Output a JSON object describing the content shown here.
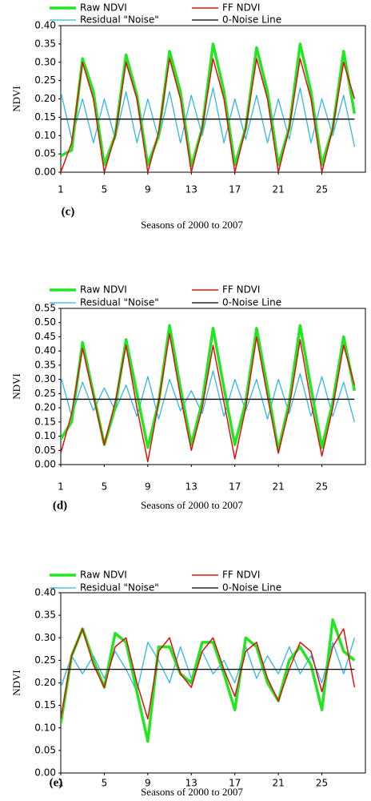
{
  "chart_data": [
    {
      "type": "line",
      "label": "(c)",
      "xlabel": "Seasons of 2000 to 2007",
      "ylabel": "NDVI",
      "x": [
        1,
        2,
        3,
        4,
        5,
        6,
        7,
        8,
        9,
        10,
        11,
        12,
        13,
        14,
        15,
        16,
        17,
        18,
        19,
        20,
        21,
        22,
        23,
        24,
        25,
        26,
        27,
        28
      ],
      "xlim": [
        1,
        29
      ],
      "xticks": [
        1,
        5,
        9,
        13,
        17,
        21,
        25
      ],
      "ylim": [
        0,
        0.4
      ],
      "yticks": [
        {
          "value": 0,
          "label": "0.00"
        },
        {
          "value": 0.05,
          "label": "0.05"
        },
        {
          "value": 0.1,
          "label": "0.10"
        },
        {
          "value": 0.15,
          "label": "0.15"
        },
        {
          "value": 0.2,
          "label": "0.20"
        },
        {
          "value": 0.25,
          "label": "0.25"
        },
        {
          "value": 0.3,
          "label": "0.30"
        },
        {
          "value": 0.35,
          "label": "0.35"
        },
        {
          "value": 0.4,
          "label": "0.40"
        }
      ],
      "series": [
        {
          "name": "Raw NDVI",
          "color": "#22e622",
          "values": [
            0.045,
            0.06,
            0.31,
            0.22,
            0.02,
            0.1,
            0.32,
            0.21,
            0.02,
            0.1,
            0.33,
            0.22,
            0.015,
            0.12,
            0.35,
            0.22,
            0.02,
            0.12,
            0.34,
            0.22,
            0.02,
            0.12,
            0.35,
            0.22,
            0.02,
            0.12,
            0.33,
            0.16
          ]
        },
        {
          "name": "FF NDVI",
          "color": "#e01010",
          "values": [
            0.0,
            0.08,
            0.3,
            0.2,
            0.0,
            0.1,
            0.3,
            0.2,
            0.0,
            0.11,
            0.31,
            0.2,
            0.0,
            0.12,
            0.31,
            0.2,
            0.0,
            0.12,
            0.31,
            0.2,
            0.0,
            0.12,
            0.31,
            0.2,
            0.0,
            0.12,
            0.3,
            0.2
          ]
        },
        {
          "name": "Residual \"Noise\"",
          "color": "#30b8e8",
          "values": [
            0.22,
            0.09,
            0.2,
            0.08,
            0.2,
            0.09,
            0.22,
            0.08,
            0.2,
            0.09,
            0.22,
            0.08,
            0.21,
            0.1,
            0.23,
            0.08,
            0.2,
            0.09,
            0.21,
            0.08,
            0.2,
            0.09,
            0.23,
            0.08,
            0.2,
            0.1,
            0.21,
            0.07
          ]
        },
        {
          "name": "0-Noise Line",
          "color": "#000000",
          "values": [
            0.145,
            0.145,
            0.145,
            0.145,
            0.145,
            0.145,
            0.145,
            0.145,
            0.145,
            0.145,
            0.145,
            0.145,
            0.145,
            0.145,
            0.145,
            0.145,
            0.145,
            0.145,
            0.145,
            0.145,
            0.145,
            0.145,
            0.145,
            0.145,
            0.145,
            0.145,
            0.145,
            0.145
          ]
        }
      ]
    },
    {
      "type": "line",
      "label": "(d)",
      "xlabel": "Seasons of 2000 to 2007",
      "ylabel": "NDVI",
      "x": [
        1,
        2,
        3,
        4,
        5,
        6,
        7,
        8,
        9,
        10,
        11,
        12,
        13,
        14,
        15,
        16,
        17,
        18,
        19,
        20,
        21,
        22,
        23,
        24,
        25,
        26,
        27,
        28
      ],
      "xlim": [
        1,
        29
      ],
      "xticks": [
        1,
        5,
        9,
        13,
        17,
        21,
        25
      ],
      "ylim": [
        0,
        0.55
      ],
      "yticks": [
        {
          "value": 0,
          "label": "0.00"
        },
        {
          "value": 0.05,
          "label": "0.05"
        },
        {
          "value": 0.1,
          "label": "0.10"
        },
        {
          "value": 0.15,
          "label": "0.15"
        },
        {
          "value": 0.2,
          "label": "0.20"
        },
        {
          "value": 0.25,
          "label": "0.25"
        },
        {
          "value": 0.3,
          "label": "0.30"
        },
        {
          "value": 0.35,
          "label": "0.35"
        },
        {
          "value": 0.4,
          "label": "0.40"
        },
        {
          "value": 0.45,
          "label": "0.45"
        },
        {
          "value": 0.5,
          "label": "0.50"
        },
        {
          "value": 0.55,
          "label": "0.55"
        }
      ],
      "series": [
        {
          "name": "Raw NDVI",
          "color": "#22e622",
          "values": [
            0.09,
            0.15,
            0.43,
            0.25,
            0.07,
            0.2,
            0.44,
            0.25,
            0.06,
            0.22,
            0.49,
            0.27,
            0.07,
            0.22,
            0.48,
            0.27,
            0.07,
            0.22,
            0.48,
            0.27,
            0.05,
            0.22,
            0.49,
            0.27,
            0.06,
            0.22,
            0.45,
            0.26
          ]
        },
        {
          "name": "FF NDVI",
          "color": "#e01010",
          "values": [
            0.04,
            0.18,
            0.41,
            0.24,
            0.07,
            0.22,
            0.42,
            0.2,
            0.01,
            0.22,
            0.46,
            0.24,
            0.05,
            0.2,
            0.42,
            0.22,
            0.02,
            0.2,
            0.45,
            0.24,
            0.04,
            0.2,
            0.44,
            0.22,
            0.03,
            0.2,
            0.42,
            0.28
          ]
        },
        {
          "name": "Residual \"Noise\"",
          "color": "#30b8e8",
          "values": [
            0.31,
            0.17,
            0.29,
            0.19,
            0.27,
            0.19,
            0.28,
            0.17,
            0.31,
            0.16,
            0.3,
            0.19,
            0.26,
            0.18,
            0.33,
            0.17,
            0.3,
            0.19,
            0.3,
            0.16,
            0.3,
            0.18,
            0.32,
            0.17,
            0.31,
            0.17,
            0.29,
            0.15
          ]
        },
        {
          "name": "0-Noise Line",
          "color": "#000000",
          "values": [
            0.23,
            0.23,
            0.23,
            0.23,
            0.23,
            0.23,
            0.23,
            0.23,
            0.23,
            0.23,
            0.23,
            0.23,
            0.23,
            0.23,
            0.23,
            0.23,
            0.23,
            0.23,
            0.23,
            0.23,
            0.23,
            0.23,
            0.23,
            0.23,
            0.23,
            0.23,
            0.23,
            0.23
          ]
        }
      ]
    },
    {
      "type": "line",
      "label": "(e)",
      "xlabel": "Seasons of 2000 to 2007",
      "ylabel": "NDVI",
      "x": [
        1,
        2,
        3,
        4,
        5,
        6,
        7,
        8,
        9,
        10,
        11,
        12,
        13,
        14,
        15,
        16,
        17,
        18,
        19,
        20,
        21,
        22,
        23,
        24,
        25,
        26,
        27,
        28
      ],
      "xlim": [
        1,
        29
      ],
      "xticks": [
        1,
        5,
        9,
        13,
        17,
        21,
        25
      ],
      "ylim": [
        0,
        0.4
      ],
      "yticks": [
        {
          "value": 0,
          "label": "0.00"
        },
        {
          "value": 0.05,
          "label": "0.05"
        },
        {
          "value": 0.1,
          "label": "0.10"
        },
        {
          "value": 0.15,
          "label": "0.15"
        },
        {
          "value": 0.2,
          "label": "0.20"
        },
        {
          "value": 0.25,
          "label": "0.25"
        },
        {
          "value": 0.3,
          "label": "0.30"
        },
        {
          "value": 0.35,
          "label": "0.35"
        },
        {
          "value": 0.4,
          "label": "0.40"
        }
      ],
      "series": [
        {
          "name": "Raw NDVI",
          "color": "#22e622",
          "values": [
            0.11,
            0.26,
            0.32,
            0.25,
            0.19,
            0.31,
            0.29,
            0.18,
            0.07,
            0.28,
            0.28,
            0.22,
            0.2,
            0.29,
            0.29,
            0.22,
            0.14,
            0.3,
            0.28,
            0.2,
            0.16,
            0.25,
            0.28,
            0.24,
            0.14,
            0.34,
            0.27,
            0.25
          ]
        },
        {
          "name": "FF NDVI",
          "color": "#e01010",
          "values": [
            0.12,
            0.26,
            0.32,
            0.24,
            0.19,
            0.28,
            0.3,
            0.2,
            0.12,
            0.27,
            0.3,
            0.22,
            0.19,
            0.27,
            0.3,
            0.23,
            0.17,
            0.27,
            0.29,
            0.21,
            0.16,
            0.23,
            0.29,
            0.27,
            0.18,
            0.28,
            0.32,
            0.19
          ]
        },
        {
          "name": "Residual \"Noise\"",
          "color": "#30b8e8",
          "values": [
            0.19,
            0.26,
            0.22,
            0.26,
            0.21,
            0.27,
            0.23,
            0.18,
            0.29,
            0.25,
            0.2,
            0.28,
            0.21,
            0.27,
            0.22,
            0.25,
            0.2,
            0.28,
            0.21,
            0.26,
            0.22,
            0.28,
            0.22,
            0.26,
            0.2,
            0.29,
            0.22,
            0.3
          ]
        },
        {
          "name": "0-Noise Line",
          "color": "#000000",
          "values": [
            0.23,
            0.23,
            0.23,
            0.23,
            0.23,
            0.23,
            0.23,
            0.23,
            0.23,
            0.23,
            0.23,
            0.23,
            0.23,
            0.23,
            0.23,
            0.23,
            0.23,
            0.23,
            0.23,
            0.23,
            0.23,
            0.23,
            0.23,
            0.23,
            0.23,
            0.23,
            0.23,
            0.23
          ]
        }
      ]
    }
  ]
}
